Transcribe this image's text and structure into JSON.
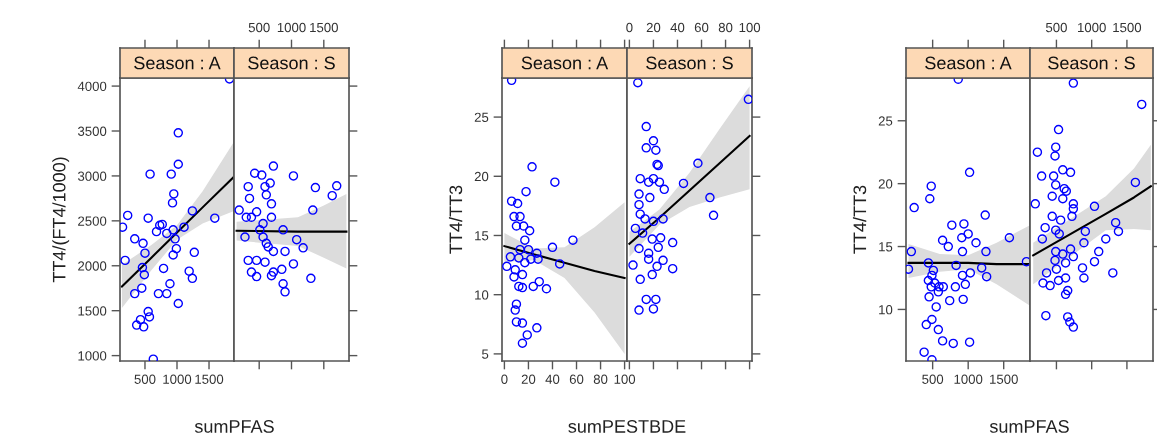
{
  "chart_data": [
    {
      "type": "scatter",
      "title": "Season : A",
      "xlabel": "sumPFAS",
      "ylabel": "TT4/(FT4/1000)",
      "line_style": "solid",
      "xlim": [
        110,
        1890
      ],
      "xticks": [
        500,
        1000,
        1500
      ],
      "ylim": [
        940,
        4090
      ],
      "yticks": [
        1000,
        1500,
        2000,
        2500,
        3000,
        3500,
        4000
      ],
      "series": [
        {
          "marker": "circle",
          "color": "#0000ff",
          "x": [
            1820,
            1020,
            1020,
            910,
            580,
            950,
            930,
            230,
            150,
            550,
            1240,
            1590,
            1110,
            770,
            680,
            340,
            470,
            500,
            190,
            940,
            970,
            990,
            940,
            1270,
            460,
            490,
            790,
            1190,
            1240,
            890,
            340,
            450,
            710,
            840,
            1020,
            550,
            570,
            430,
            370,
            480,
            630,
            730,
            840
          ],
          "values": [
            4080,
            3480,
            3130,
            3020,
            3020,
            2800,
            2700,
            2560,
            2430,
            2530,
            2610,
            2530,
            2430,
            2460,
            2380,
            2300,
            2250,
            2140,
            2060,
            2400,
            2300,
            2190,
            2120,
            2150,
            1980,
            1900,
            1970,
            1940,
            1860,
            1800,
            1690,
            1750,
            1690,
            1690,
            1580,
            1490,
            1430,
            1400,
            1340,
            1320,
            960,
            2450,
            2360
          ]
        },
        {
          "type": "line",
          "color": "#000000",
          "x": [
            140,
            600,
            1000,
            1400,
            1890
          ],
          "values": [
            1770,
            2090,
            2370,
            2650,
            2990
          ],
          "lower": [
            1530,
            1950,
            2290,
            2470,
            2610
          ],
          "upper": [
            2010,
            2230,
            2450,
            2830,
            3380
          ]
        }
      ]
    },
    {
      "type": "scatter",
      "title": "Season : S",
      "line_style": "solid",
      "tick_labels": "x",
      "xlim": [
        110,
        1890
      ],
      "xticks": [
        500,
        1000,
        1500
      ],
      "ylim": [
        940,
        4090
      ],
      "yticks": [
        {
          "value": 1000,
          "label": null
        },
        {
          "value": 1500,
          "label": null
        },
        {
          "value": 2000,
          "label": null
        },
        {
          "value": 2500,
          "label": null
        },
        {
          "value": 3000,
          "label": null
        },
        {
          "value": 3500,
          "label": null
        },
        {
          "value": 4000,
          "label": null
        }
      ],
      "series": [
        {
          "marker": "circle",
          "color": "#0000ff",
          "x": [
            190,
            300,
            430,
            540,
            720,
            610,
            590,
            330,
            350,
            670,
            690,
            380,
            460,
            690,
            1030,
            1370,
            1630,
            1700,
            1330,
            280,
            560,
            610,
            510,
            870,
            1080,
            1180,
            720,
            900,
            330,
            460,
            590,
            380,
            460,
            720,
            690,
            850,
            1030,
            870,
            900,
            1300,
            640,
            560
          ],
          "values": [
            2620,
            2540,
            3030,
            3010,
            3110,
            2790,
            2880,
            2880,
            2750,
            2920,
            2690,
            2540,
            2600,
            2540,
            3000,
            2870,
            2780,
            2890,
            2620,
            2320,
            2320,
            2250,
            2400,
            2400,
            2290,
            2200,
            2160,
            2160,
            2060,
            2060,
            2040,
            1930,
            1880,
            1930,
            1890,
            1960,
            2020,
            1800,
            1710,
            1860,
            2210,
            2470
          ]
        },
        {
          "type": "line",
          "color": "#000000",
          "x": [
            150,
            1100,
            1500,
            1850
          ],
          "values": [
            2390,
            2380,
            2380,
            2380
          ],
          "lower": [
            2280,
            2220,
            2090,
            1970
          ],
          "upper": [
            2490,
            2540,
            2670,
            2800
          ]
        }
      ]
    },
    {
      "type": "scatter",
      "title": "Season : A",
      "xlabel": "sumPESTBDE",
      "ylabel": "TT4/TT3",
      "line_style": "solid",
      "xlim": [
        -2,
        102
      ],
      "xticks": [
        0,
        20,
        40,
        60,
        80,
        100
      ],
      "ylim": [
        4.4,
        28.3
      ],
      "yticks": [
        5,
        10,
        15,
        20,
        25
      ],
      "series": [
        {
          "marker": "circle",
          "color": "#0000ff",
          "x": [
            6,
            23,
            42,
            18,
            6,
            11,
            8,
            13,
            10,
            16,
            21,
            17,
            20,
            40,
            57,
            5,
            12,
            27,
            28,
            17,
            46,
            2,
            9,
            15,
            8,
            12,
            15,
            24,
            29,
            35,
            10,
            9,
            10,
            15,
            27,
            19,
            15,
            22,
            13
          ],
          "values": [
            28.1,
            20.8,
            19.5,
            18.7,
            17.9,
            17.7,
            16.6,
            16.6,
            15.8,
            15.8,
            15.4,
            14.6,
            13.8,
            14,
            14.6,
            13.2,
            13.1,
            13.5,
            13,
            12.7,
            12.6,
            12.4,
            12.1,
            11.7,
            11.5,
            10.7,
            10.6,
            10.7,
            11.1,
            10.5,
            9.2,
            8.7,
            7.7,
            7.6,
            7.2,
            6.6,
            5.9,
            13,
            13.8
          ]
        },
        {
          "type": "line",
          "color": "#000000",
          "x": [
            0,
            25,
            50,
            75,
            100
          ],
          "values": [
            14.1,
            13.4,
            12.7,
            12,
            11.4
          ],
          "lower": [
            12.8,
            12.9,
            11.4,
            8.5,
            5.0
          ],
          "upper": [
            15.2,
            13.9,
            14.0,
            15.7,
            17.8
          ]
        }
      ]
    },
    {
      "type": "scatter",
      "title": "Season : S",
      "line_style": "solid",
      "tick_labels": "x",
      "xlim": [
        -2,
        102
      ],
      "xticks": [
        0,
        20,
        40,
        60,
        80,
        100
      ],
      "ylim": [
        4.4,
        28.3
      ],
      "yticks": [
        {
          "value": 5,
          "label": null
        },
        {
          "value": 10,
          "label": null
        },
        {
          "value": 15,
          "label": null
        },
        {
          "value": 20,
          "label": null
        },
        {
          "value": 25,
          "label": null
        }
      ],
      "series": [
        {
          "marker": "circle",
          "color": "#0000ff",
          "x": [
            7,
            99,
            14,
            14,
            20,
            22,
            23,
            24,
            9,
            16,
            20,
            25,
            29,
            45,
            57,
            67,
            70,
            17,
            8,
            8,
            9,
            5,
            13,
            20,
            28,
            11,
            19,
            26,
            36,
            8,
            16,
            24,
            3,
            16,
            28,
            36,
            9,
            19,
            23,
            14,
            22,
            8,
            20
          ],
          "values": [
            27.9,
            26.5,
            24.2,
            22.4,
            23,
            22.2,
            21,
            20.9,
            19.8,
            19.5,
            19.8,
            19.5,
            18.9,
            19.4,
            21.1,
            18.2,
            16.7,
            18.2,
            18.5,
            17.6,
            16.8,
            15.6,
            16.4,
            16.2,
            16.4,
            15.2,
            14.7,
            14.8,
            14.4,
            13.9,
            13.5,
            14,
            12.5,
            13,
            12.9,
            12.2,
            11.3,
            11.7,
            12.4,
            9.6,
            9.6,
            8.7,
            8.8
          ]
        },
        {
          "type": "line",
          "color": "#000000",
          "x": [
            0,
            25,
            50,
            75,
            100
          ],
          "values": [
            14.3,
            16.5,
            18.8,
            21.1,
            23.4
          ],
          "lower": [
            13.2,
            15.9,
            17.4,
            18.2,
            18.9
          ],
          "upper": [
            15.3,
            17.2,
            20.3,
            24.0,
            27.6
          ]
        }
      ]
    },
    {
      "type": "scatter",
      "title": "Season : A",
      "xlabel": "sumPFAS",
      "ylabel": "TT4/TT3",
      "line_style": "solid",
      "xlim": [
        125,
        1870
      ],
      "xticks": [
        500,
        1000,
        1500
      ],
      "ylim": [
        5.9,
        28.4
      ],
      "yticks": [
        10,
        15,
        20,
        25
      ],
      "series": [
        {
          "marker": "circle",
          "color": "#0000ff",
          "x": [
            860,
            1020,
            480,
            460,
            240,
            1240,
            770,
            940,
            1000,
            910,
            640,
            720,
            1110,
            1580,
            920,
            1250,
            200,
            440,
            830,
            1190,
            1260,
            160,
            510,
            490,
            920,
            1030,
            440,
            530,
            590,
            480,
            650,
            820,
            960,
            450,
            580,
            740,
            930,
            550,
            490,
            410,
            580,
            640,
            790,
            1020,
            380,
            490,
            1820
          ],
          "values": [
            28.3,
            20.9,
            19.8,
            18.8,
            18.1,
            17.5,
            16.7,
            16.8,
            16,
            15.7,
            15.5,
            15,
            15.3,
            15.7,
            14.6,
            14.6,
            14.6,
            13.7,
            13.5,
            13.3,
            12.6,
            13.2,
            13.1,
            12.7,
            12.7,
            12.9,
            12.3,
            12.1,
            11.8,
            11.8,
            11.8,
            11.8,
            12,
            11,
            11.4,
            10.7,
            10.8,
            10.2,
            9.2,
            8.8,
            8.4,
            7.5,
            7.3,
            7.4,
            6.6,
            6.0,
            13.8
          ]
        },
        {
          "type": "line",
          "color": "#000000",
          "x": [
            160,
            600,
            1000,
            1400,
            1870
          ],
          "values": [
            13.7,
            13.7,
            13.7,
            13.6,
            13.6
          ],
          "lower": [
            12.5,
            13.0,
            13.2,
            12.0,
            10.3
          ],
          "upper": [
            15.2,
            14.4,
            14.3,
            15.3,
            16.7
          ]
        }
      ]
    },
    {
      "type": "scatter",
      "title": "Season : S",
      "line_style": "solid",
      "tick_labels": "x",
      "xlim": [
        125,
        1870
      ],
      "xticks": [
        500,
        1000,
        1500
      ],
      "ylim": [
        5.9,
        28.4
      ],
      "yticks": [
        {
          "value": 10,
          "label": null
        },
        {
          "value": 15,
          "label": null
        },
        {
          "value": 20,
          "label": null
        },
        {
          "value": 25,
          "label": null
        }
      ],
      "series": [
        {
          "marker": "circle",
          "color": "#0000ff",
          "x": [
            740,
            1710,
            530,
            230,
            490,
            480,
            290,
            460,
            590,
            700,
            490,
            610,
            640,
            440,
            590,
            740,
            740,
            200,
            1040,
            1620,
            440,
            720,
            560,
            340,
            490,
            540,
            910,
            1340,
            1380,
            300,
            890,
            1200,
            490,
            700,
            590,
            740,
            1100,
            1040,
            630,
            480,
            870,
            1300,
            360,
            500,
            310,
            410,
            530,
            630,
            890,
            660,
            630,
            350,
            660,
            690,
            740
          ],
          "values": [
            28,
            26.3,
            24.3,
            22.5,
            22.9,
            22.2,
            20.6,
            20.6,
            21.1,
            20.9,
            19.9,
            19.6,
            19.4,
            19,
            18.8,
            18.4,
            18,
            18.4,
            18.2,
            20.1,
            17.4,
            17.4,
            17.1,
            16.5,
            16.3,
            16,
            16.2,
            16.9,
            16.2,
            15.6,
            15.3,
            15.6,
            14.6,
            14.8,
            14.4,
            14.2,
            14.6,
            13.8,
            13.7,
            13.9,
            13.3,
            12.9,
            12.9,
            13.2,
            12.1,
            11.9,
            12.3,
            12.5,
            12.5,
            11.5,
            11.2,
            9.5,
            9.4,
            9,
            8.6
          ]
        },
        {
          "type": "line",
          "color": "#000000",
          "x": [
            170,
            1200,
            1600,
            1840
          ],
          "values": [
            14.3,
            17.6,
            18.9,
            19.8
          ],
          "lower": [
            12.0,
            16.3,
            16.4,
            16.3
          ],
          "upper": [
            15.3,
            19.0,
            21.2,
            23.1
          ]
        }
      ]
    }
  ]
}
